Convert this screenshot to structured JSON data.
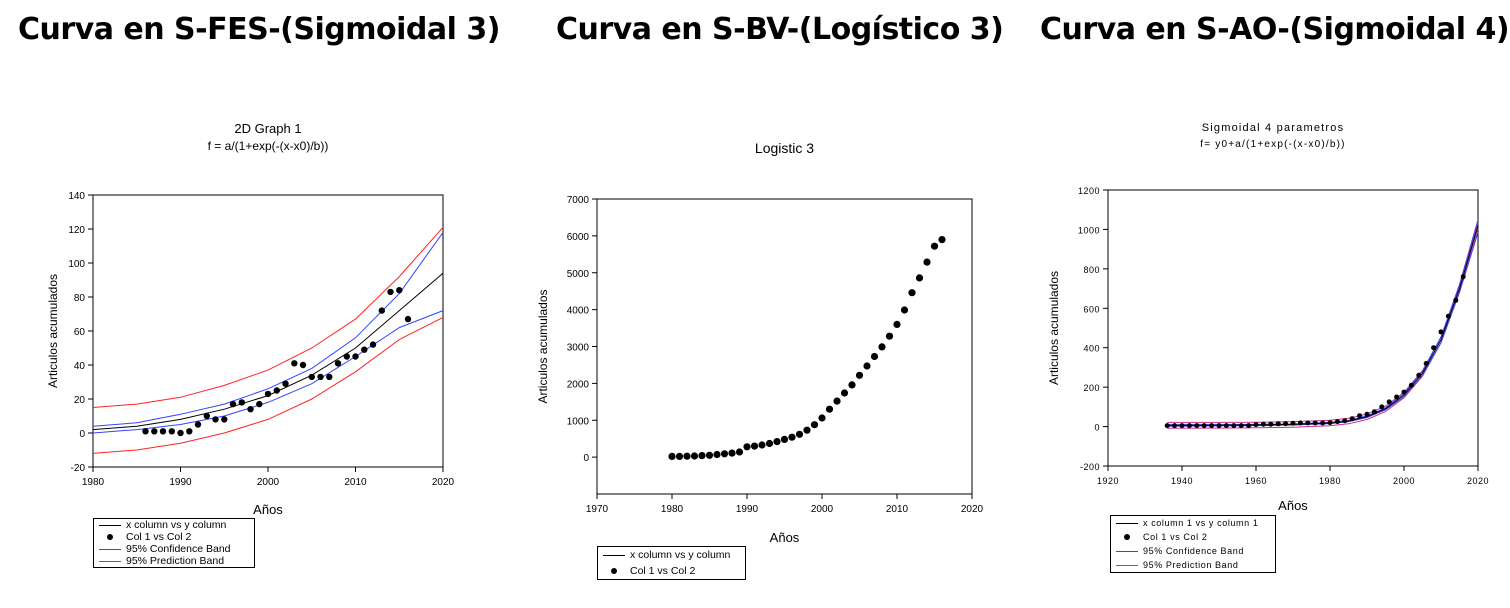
{
  "headings": {
    "left": "Curva en S-FES-(Sigmoidal 3)",
    "middle": "Curva en S-BV-(Logístico 3)",
    "right": "Curva en S-AO-(Sigmoidal 4)"
  },
  "colors": {
    "fit": "#000000",
    "confidence": "#3344ff",
    "prediction": "#ff2222",
    "right_prediction": "#cc3388"
  },
  "chart_data": [
    {
      "type": "scatter",
      "title": "2D Graph 1",
      "subtitle": "f = a/(1+exp(-(x-x0)/b))",
      "xlabel": "Años",
      "ylabel": "Articulos acumulados",
      "xlim": [
        1980,
        2020
      ],
      "ylim": [
        -20,
        140
      ],
      "xticks": [
        1980,
        1990,
        2000,
        2010,
        2020
      ],
      "yticks": [
        -20,
        0,
        20,
        40,
        60,
        80,
        100,
        120,
        140
      ],
      "grid": false,
      "legend_position": "bottom-left",
      "legend": [
        "x column vs y column",
        "Col 1 vs Col 2",
        "95% Confidence Band",
        "95% Prediction Band"
      ],
      "points": {
        "x": [
          1986,
          1987,
          1988,
          1989,
          1990,
          1991,
          1992,
          1993,
          1994,
          1995,
          1996,
          1997,
          1998,
          1999,
          2000,
          2001,
          2002,
          2003,
          2004,
          2005,
          2006,
          2007,
          2008,
          2009,
          2010,
          2011,
          2012,
          2013,
          2014,
          2015,
          2016
        ],
        "y": [
          1,
          1,
          1,
          1,
          0,
          1,
          5,
          10,
          8,
          8,
          17,
          18,
          14,
          17,
          23,
          25,
          29,
          41,
          40,
          33,
          33,
          33,
          41,
          45,
          45,
          49,
          52,
          72,
          83,
          84,
          67
        ]
      },
      "fit": {
        "x": [
          1980,
          1985,
          1990,
          1995,
          2000,
          2005,
          2010,
          2015,
          2020
        ],
        "y": [
          2,
          4,
          8,
          14,
          22,
          34,
          50,
          72,
          94
        ]
      },
      "confidence_upper": {
        "x": [
          1980,
          1985,
          1990,
          1995,
          2000,
          2005,
          2010,
          2015,
          2020
        ],
        "y": [
          4,
          6,
          11,
          17,
          26,
          38,
          56,
          82,
          118
        ]
      },
      "confidence_lower": {
        "x": [
          1980,
          1985,
          1990,
          1995,
          2000,
          2005,
          2010,
          2015,
          2020
        ],
        "y": [
          0,
          2,
          5,
          10,
          18,
          29,
          45,
          62,
          72
        ]
      },
      "prediction_upper": {
        "x": [
          1980,
          1985,
          1990,
          1995,
          2000,
          2005,
          2010,
          2015,
          2020
        ],
        "y": [
          15,
          17,
          21,
          28,
          37,
          50,
          67,
          92,
          121
        ]
      },
      "prediction_lower": {
        "x": [
          1980,
          1985,
          1990,
          1995,
          2000,
          2005,
          2010,
          2015,
          2020
        ],
        "y": [
          -12,
          -10,
          -6,
          0,
          8,
          20,
          36,
          55,
          68
        ]
      }
    },
    {
      "type": "scatter",
      "title": "Logistic 3",
      "xlabel": "Años",
      "ylabel": "Articulos acumulados",
      "xlim": [
        1970,
        2020
      ],
      "ylim": [
        -1000,
        7000
      ],
      "xticks": [
        1970,
        1980,
        1990,
        2000,
        2010,
        2020
      ],
      "yticks": [
        0,
        1000,
        2000,
        3000,
        4000,
        5000,
        6000,
        7000
      ],
      "grid": false,
      "legend_position": "bottom-left",
      "legend": [
        "x column vs y column",
        "Col 1 vs Col 2"
      ],
      "points": {
        "x": [
          1980,
          1981,
          1982,
          1983,
          1984,
          1985,
          1986,
          1987,
          1988,
          1989,
          1990,
          1991,
          1992,
          1993,
          1994,
          1995,
          1996,
          1997,
          1998,
          1999,
          2000,
          2001,
          2002,
          2003,
          2004,
          2005,
          2006,
          2007,
          2008,
          2009,
          2010,
          2011,
          2012,
          2013,
          2014,
          2015,
          2016
        ],
        "y": [
          20,
          20,
          25,
          30,
          40,
          50,
          70,
          90,
          110,
          140,
          280,
          300,
          330,
          370,
          420,
          480,
          540,
          620,
          730,
          880,
          1060,
          1300,
          1520,
          1740,
          1960,
          2220,
          2470,
          2730,
          2990,
          3280,
          3600,
          3990,
          4460,
          4860,
          5290,
          5720,
          5900
        ]
      }
    },
    {
      "type": "scatter",
      "title": "Sigmoidal 4 parametros",
      "subtitle": "f= y0+a/(1+exp(-(x-x0)/b))",
      "xlabel": "Años",
      "ylabel": "Articulos acumulados",
      "xlim": [
        1920,
        2020
      ],
      "ylim": [
        -200,
        1200
      ],
      "xticks": [
        1920,
        1940,
        1960,
        1980,
        2000,
        2020
      ],
      "yticks": [
        -200,
        0,
        200,
        400,
        600,
        800,
        1000,
        1200
      ],
      "grid": false,
      "legend_position": "bottom-left",
      "legend": [
        "x column 1 vs y column 1",
        "Col 1 vs Col 2",
        "95% Confidence Band",
        "95% Prediction Band"
      ],
      "points": {
        "x": [
          1936,
          1938,
          1940,
          1942,
          1944,
          1946,
          1948,
          1950,
          1952,
          1954,
          1956,
          1958,
          1960,
          1962,
          1964,
          1966,
          1968,
          1970,
          1972,
          1974,
          1976,
          1978,
          1980,
          1982,
          1984,
          1986,
          1988,
          1990,
          1992,
          1994,
          1996,
          1998,
          2000,
          2002,
          2004,
          2006,
          2008,
          2010,
          2012,
          2014,
          2016
        ],
        "y": [
          5,
          5,
          5,
          5,
          5,
          5,
          5,
          5,
          5,
          5,
          5,
          5,
          10,
          12,
          12,
          14,
          15,
          17,
          18,
          18,
          18,
          18,
          20,
          25,
          30,
          40,
          55,
          62,
          75,
          100,
          125,
          150,
          175,
          210,
          260,
          320,
          400,
          480,
          560,
          640,
          760
        ]
      },
      "fit": {
        "x": [
          1936,
          1950,
          1960,
          1970,
          1980,
          1985,
          1990,
          1995,
          2000,
          2005,
          2010,
          2015,
          2020
        ],
        "y": [
          6,
          7,
          8,
          11,
          18,
          28,
          50,
          90,
          160,
          270,
          440,
          700,
          1020
        ]
      },
      "confidence_upper": {
        "x": [
          1936,
          1950,
          1960,
          1970,
          1980,
          1985,
          1990,
          1995,
          2000,
          2005,
          2010,
          2015,
          2020
        ],
        "y": [
          10,
          10,
          11,
          13,
          21,
          31,
          54,
          95,
          168,
          280,
          455,
          720,
          1050
        ]
      },
      "confidence_lower": {
        "x": [
          1936,
          1950,
          1960,
          1970,
          1980,
          1985,
          1990,
          1995,
          2000,
          2005,
          2010,
          2015,
          2020
        ],
        "y": [
          2,
          4,
          5,
          8,
          15,
          25,
          46,
          85,
          152,
          260,
          425,
          680,
          985
        ]
      },
      "prediction_upper": {
        "x": [
          1936,
          1950,
          1960,
          1970,
          1980,
          1985,
          1990,
          1995,
          2000,
          2005,
          2010,
          2015,
          2020
        ],
        "y": [
          21,
          21,
          22,
          25,
          32,
          42,
          64,
          104,
          174,
          284,
          454,
          714,
          1035
        ]
      },
      "prediction_lower": {
        "x": [
          1936,
          1950,
          1960,
          1970,
          1980,
          1985,
          1990,
          1995,
          2000,
          2005,
          2010,
          2015,
          2020
        ],
        "y": [
          -9,
          -8,
          -6,
          -3,
          4,
          14,
          36,
          76,
          146,
          256,
          426,
          686,
          1005
        ]
      }
    }
  ]
}
